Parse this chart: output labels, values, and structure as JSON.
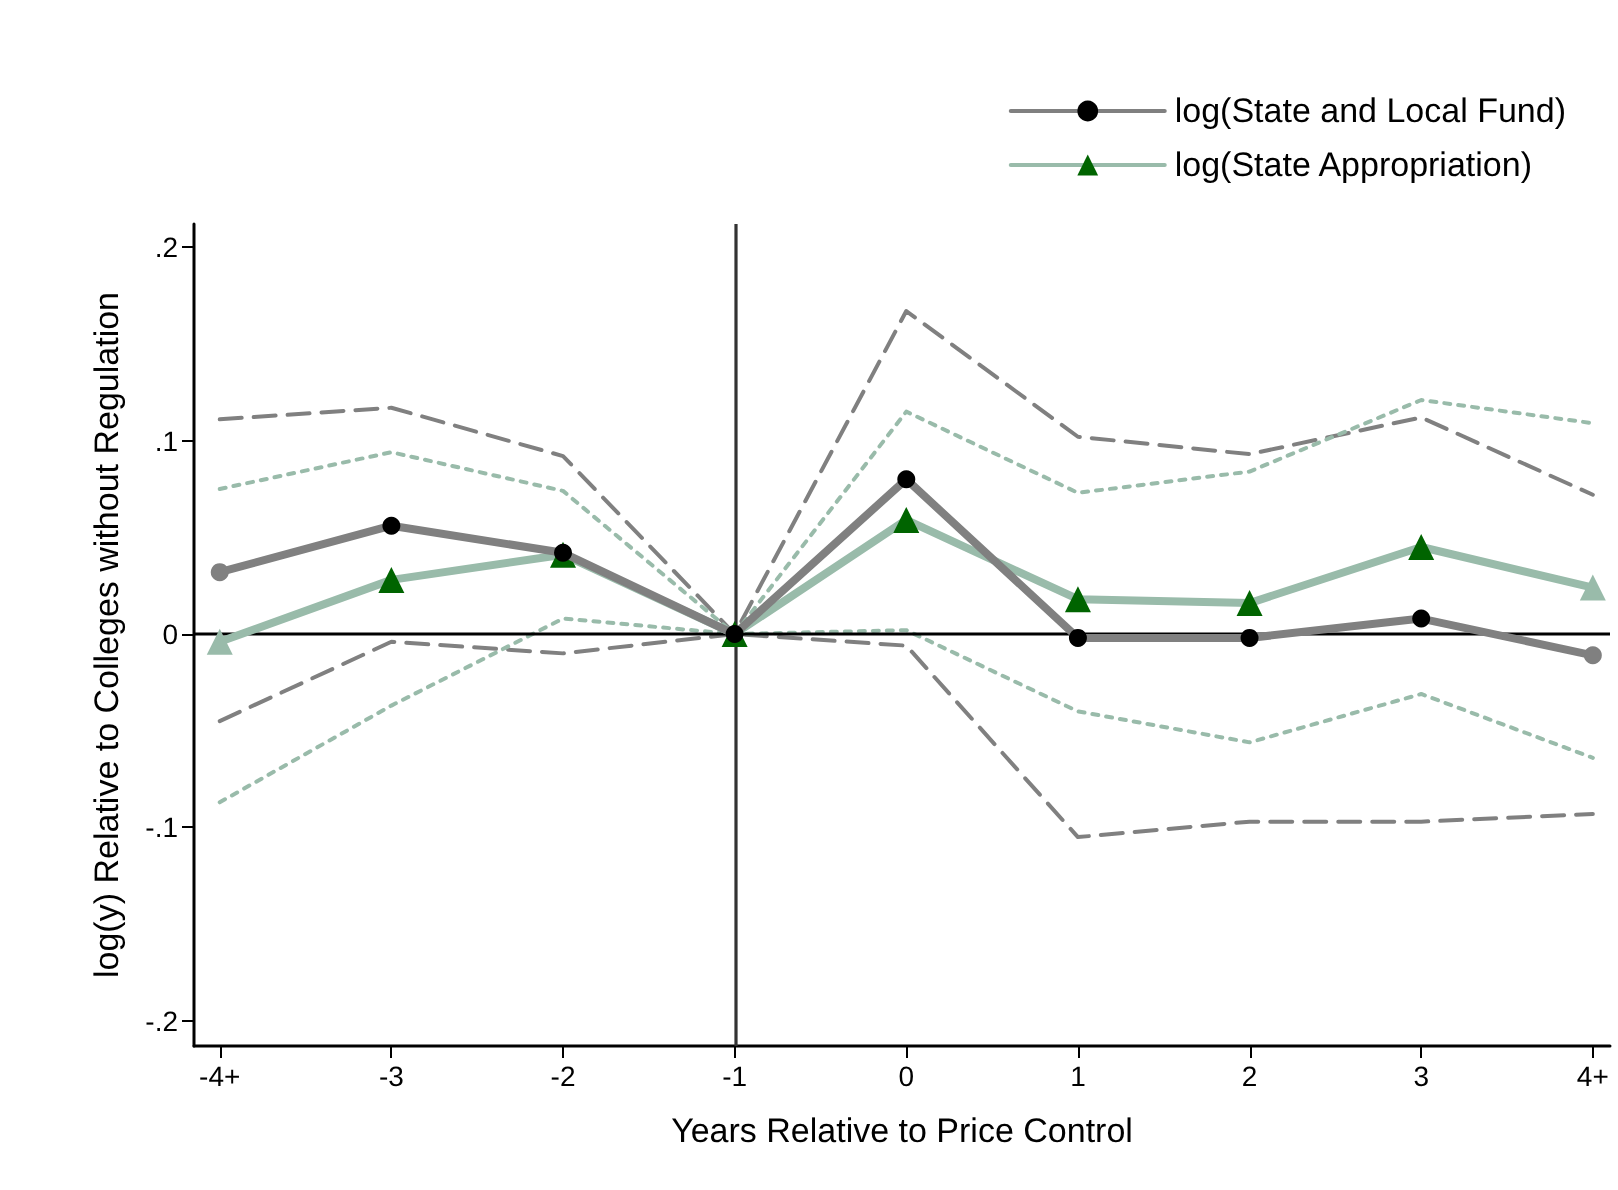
{
  "chart_data": {
    "type": "line",
    "xlabel": "Years Relative to Price Control",
    "ylabel": "log(y) Relative to Colleges without Regulation",
    "x": [
      -4,
      -3,
      -2,
      -1,
      0,
      1,
      2,
      3,
      4
    ],
    "xlim": [
      -4.15,
      4.1
    ],
    "xticks": [
      {
        "value": -4,
        "label": "-4+"
      },
      -3,
      -2,
      -1,
      0,
      1,
      2,
      3,
      {
        "value": 4,
        "label": "4+"
      }
    ],
    "ylim": [
      -0.213,
      0.212
    ],
    "yticks": [
      {
        "value": -0.2,
        "label": "-.2"
      },
      {
        "value": -0.1,
        "label": "-.1"
      },
      0,
      {
        "value": 0.1,
        "label": ".1"
      },
      {
        "value": 0.2,
        "label": ".2"
      }
    ],
    "legend": "top right",
    "ref_lines": [
      {
        "axis": "x",
        "value": -1,
        "color": "#333333"
      },
      {
        "axis": "y",
        "value": 0,
        "color": "#000000"
      }
    ],
    "series": [
      {
        "name": "log(State and Local Fund)",
        "color": "#808080",
        "colors": [
          "#808080",
          "#000000",
          "#000000",
          "#000000",
          "#000000",
          "#000000",
          "#000000",
          "#000000",
          "#808080"
        ],
        "marker": "circle",
        "line_style": "solid",
        "values": [
          0.032,
          0.056,
          0.042,
          0,
          0.08,
          -0.002,
          -0.002,
          0.008,
          -0.011
        ]
      },
      {
        "name": "log(State Appropriation)",
        "color": "#99bbaa",
        "colors": [
          "#99bbaa",
          "#006400",
          "#006400",
          "#006400",
          "#006400",
          "#006400",
          "#006400",
          "#006400",
          "#99bbaa"
        ],
        "marker": "triangle",
        "line_style": "solid",
        "values": [
          -0.004,
          0.028,
          0.041,
          0,
          0.059,
          0.018,
          0.016,
          0.045,
          0.024
        ]
      },
      {
        "color": "#808080",
        "marker": "none",
        "line_style": "dashed",
        "values": [
          0.111,
          0.117,
          0.092,
          0,
          0.167,
          0.102,
          0.093,
          0.112,
          0.072
        ]
      },
      {
        "color": "#808080",
        "marker": "none",
        "line_style": "dashed",
        "values": [
          -0.045,
          -0.004,
          -0.01,
          0,
          -0.006,
          -0.105,
          -0.097,
          -0.097,
          -0.093
        ]
      },
      {
        "color": "#99bbaa",
        "marker": "none",
        "line_style": "dotted",
        "values": [
          0.075,
          0.094,
          0.074,
          0,
          0.115,
          0.073,
          0.084,
          0.121,
          0.109
        ]
      },
      {
        "color": "#99bbaa",
        "marker": "none",
        "line_style": "dotted",
        "values": [
          -0.087,
          -0.037,
          0.008,
          0,
          0.002,
          -0.04,
          -0.056,
          -0.031,
          -0.064
        ]
      }
    ]
  }
}
